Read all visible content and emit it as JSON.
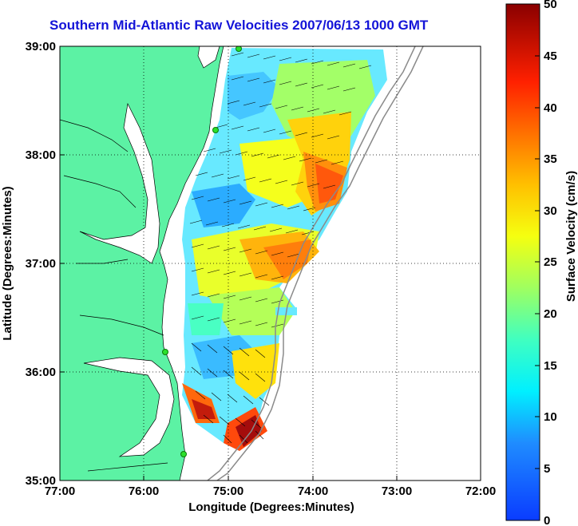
{
  "title": "Southern Mid-Atlantic Raw Velocities 2007/06/13 1000 GMT",
  "map": {
    "xlabel": "Longitude (Degrees:Minutes)",
    "ylabel": "Latitude (Degrees:Minutes)",
    "lon_range": [
      -77,
      -72
    ],
    "lat_range": [
      35,
      39
    ],
    "x_ticks": [
      "77:00",
      "76:00",
      "75:00",
      "74:00",
      "73:00",
      "72:00"
    ],
    "y_ticks": [
      "39:00",
      "38:00",
      "37:00",
      "36:00",
      "35:00"
    ],
    "grid": true,
    "colors": {
      "land": "#5cf2a4",
      "water": "#ffffff",
      "title": "#1414d8"
    }
  },
  "colorbar": {
    "label": "Surface Velocity (cm/s)",
    "ticks": [
      "50",
      "45",
      "40",
      "35",
      "30",
      "25",
      "20",
      "15",
      "10",
      "5",
      "0"
    ],
    "range": [
      0,
      50
    ]
  }
}
